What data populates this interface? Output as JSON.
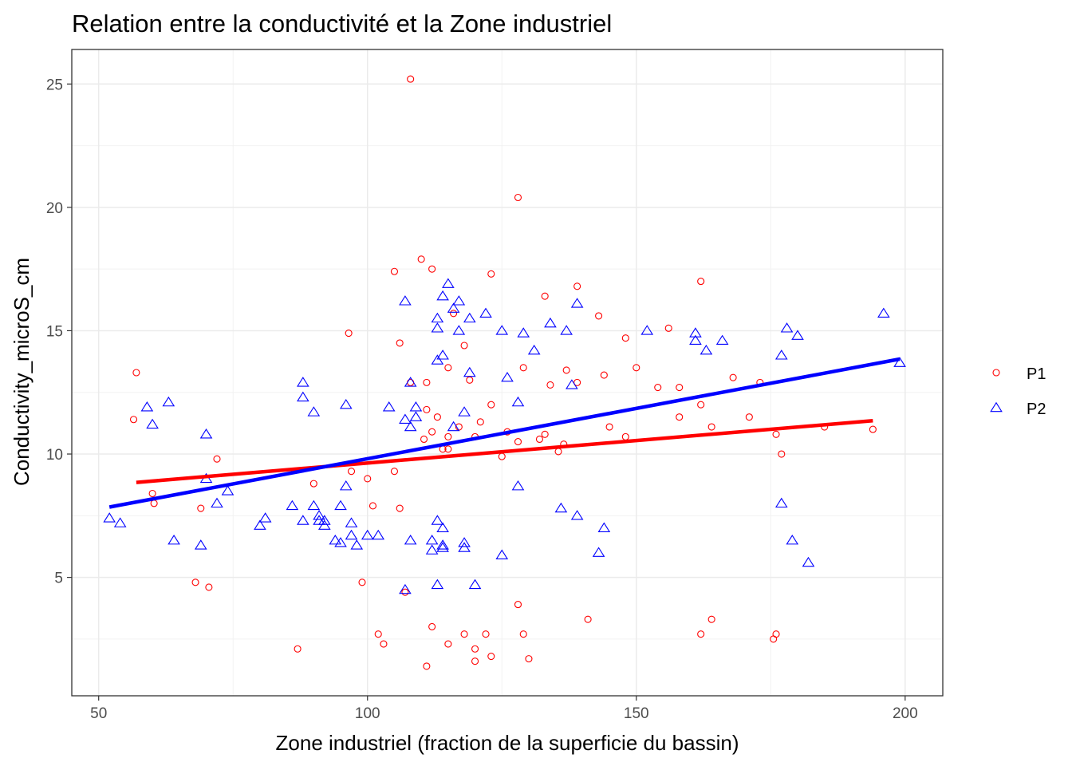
{
  "chart_data": {
    "type": "scatter",
    "title": "Relation entre la conductivité et la Zone industriel",
    "xlabel": "Zone industriel (fraction de la superficie du bassin)",
    "ylabel": "Conductivity_microS_cm",
    "xlim": [
      45,
      207
    ],
    "ylim": [
      0.2,
      26.4
    ],
    "x_ticks": [
      50,
      100,
      150,
      200
    ],
    "y_ticks": [
      5,
      10,
      15,
      20,
      25
    ],
    "grid": true,
    "legend_position": "right",
    "series": [
      {
        "name": "P1",
        "color": "#ff0000",
        "marker": "circle",
        "points": [
          [
            57,
            13.3
          ],
          [
            56.5,
            11.4
          ],
          [
            60,
            8.4
          ],
          [
            60.3,
            8.0
          ],
          [
            68,
            4.8
          ],
          [
            69,
            7.8
          ],
          [
            70.5,
            4.6
          ],
          [
            72,
            9.8
          ],
          [
            87,
            2.1
          ],
          [
            90,
            8.8
          ],
          [
            96.5,
            14.9
          ],
          [
            97,
            9.3
          ],
          [
            99,
            4.8
          ],
          [
            100,
            9.0
          ],
          [
            101,
            7.9
          ],
          [
            102,
            2.7
          ],
          [
            103,
            2.3
          ],
          [
            105,
            9.3
          ],
          [
            105,
            17.4
          ],
          [
            106,
            14.5
          ],
          [
            106,
            7.8
          ],
          [
            107,
            4.4
          ],
          [
            108,
            25.2
          ],
          [
            108,
            12.9
          ],
          [
            110,
            17.9
          ],
          [
            110.5,
            10.6
          ],
          [
            111,
            11.8
          ],
          [
            111,
            12.9
          ],
          [
            111,
            1.4
          ],
          [
            112,
            17.5
          ],
          [
            112,
            10.9
          ],
          [
            112,
            3.0
          ],
          [
            113,
            11.5
          ],
          [
            114,
            10.2
          ],
          [
            115,
            13.5
          ],
          [
            115,
            10.7
          ],
          [
            115,
            10.2
          ],
          [
            115,
            2.3
          ],
          [
            116,
            15.7
          ],
          [
            117,
            11.1
          ],
          [
            118,
            2.7
          ],
          [
            118,
            14.4
          ],
          [
            119,
            13.0
          ],
          [
            120,
            10.7
          ],
          [
            120,
            2.1
          ],
          [
            120,
            1.6
          ],
          [
            121,
            11.3
          ],
          [
            122,
            2.7
          ],
          [
            123,
            17.3
          ],
          [
            123,
            1.8
          ],
          [
            123,
            12.0
          ],
          [
            125,
            9.9
          ],
          [
            126,
            10.9
          ],
          [
            128,
            20.4
          ],
          [
            128,
            10.5
          ],
          [
            128,
            3.9
          ],
          [
            129,
            13.5
          ],
          [
            129,
            2.7
          ],
          [
            130,
            1.7
          ],
          [
            132,
            10.6
          ],
          [
            133,
            10.8
          ],
          [
            133,
            16.4
          ],
          [
            134,
            12.8
          ],
          [
            135.5,
            10.1
          ],
          [
            136.5,
            10.4
          ],
          [
            137,
            13.4
          ],
          [
            139,
            12.9
          ],
          [
            139,
            16.8
          ],
          [
            141,
            3.3
          ],
          [
            143,
            15.6
          ],
          [
            144,
            13.2
          ],
          [
            145,
            11.1
          ],
          [
            148,
            14.7
          ],
          [
            148,
            10.7
          ],
          [
            150,
            13.5
          ],
          [
            154,
            12.7
          ],
          [
            156,
            15.1
          ],
          [
            158,
            12.7
          ],
          [
            158,
            11.5
          ],
          [
            162,
            17.0
          ],
          [
            162,
            12.0
          ],
          [
            162,
            2.7
          ],
          [
            164,
            11.1
          ],
          [
            164,
            3.3
          ],
          [
            168,
            13.1
          ],
          [
            171,
            11.5
          ],
          [
            173,
            12.9
          ],
          [
            175.5,
            2.5
          ],
          [
            176,
            10.8
          ],
          [
            176,
            2.7
          ],
          [
            177,
            10.0
          ],
          [
            185,
            11.1
          ],
          [
            194,
            11.0
          ]
        ],
        "trend": [
          [
            57,
            8.85
          ],
          [
            194,
            11.35
          ]
        ]
      },
      {
        "name": "P2",
        "color": "#0000ff",
        "marker": "triangle",
        "points": [
          [
            52,
            7.4
          ],
          [
            54,
            7.2
          ],
          [
            59,
            11.9
          ],
          [
            60,
            11.2
          ],
          [
            63,
            12.1
          ],
          [
            64,
            6.5
          ],
          [
            69,
            6.3
          ],
          [
            70,
            9.0
          ],
          [
            70,
            10.8
          ],
          [
            72,
            8.0
          ],
          [
            74,
            8.5
          ],
          [
            80,
            7.1
          ],
          [
            81,
            7.4
          ],
          [
            86,
            7.9
          ],
          [
            88,
            12.9
          ],
          [
            88,
            12.3
          ],
          [
            88,
            7.3
          ],
          [
            90,
            11.7
          ],
          [
            90,
            7.9
          ],
          [
            91,
            7.5
          ],
          [
            91,
            7.3
          ],
          [
            92,
            7.3
          ],
          [
            92,
            7.1
          ],
          [
            94,
            6.5
          ],
          [
            95,
            6.4
          ],
          [
            95,
            7.9
          ],
          [
            96,
            12.0
          ],
          [
            96,
            8.7
          ],
          [
            97,
            7.2
          ],
          [
            97,
            6.7
          ],
          [
            98,
            6.3
          ],
          [
            100,
            6.7
          ],
          [
            102,
            6.7
          ],
          [
            104,
            11.9
          ],
          [
            107,
            16.2
          ],
          [
            107,
            11.4
          ],
          [
            107,
            4.5
          ],
          [
            108,
            12.9
          ],
          [
            108,
            11.1
          ],
          [
            108,
            6.5
          ],
          [
            109,
            11.5
          ],
          [
            109,
            11.9
          ],
          [
            112,
            6.5
          ],
          [
            112,
            6.1
          ],
          [
            113,
            15.5
          ],
          [
            113,
            15.1
          ],
          [
            113,
            13.8
          ],
          [
            113,
            7.3
          ],
          [
            113,
            4.7
          ],
          [
            114,
            16.4
          ],
          [
            114,
            14.0
          ],
          [
            114,
            7.0
          ],
          [
            114,
            6.3
          ],
          [
            114,
            6.2
          ],
          [
            115,
            16.9
          ],
          [
            116,
            15.9
          ],
          [
            116,
            11.1
          ],
          [
            117,
            16.2
          ],
          [
            117,
            15.0
          ],
          [
            118,
            11.7
          ],
          [
            118,
            6.4
          ],
          [
            118,
            6.2
          ],
          [
            119,
            15.5
          ],
          [
            119,
            13.3
          ],
          [
            120,
            4.7
          ],
          [
            122,
            15.7
          ],
          [
            125,
            15.0
          ],
          [
            125,
            5.9
          ],
          [
            126,
            13.1
          ],
          [
            128,
            12.1
          ],
          [
            128,
            8.7
          ],
          [
            129,
            14.9
          ],
          [
            131,
            14.2
          ],
          [
            134,
            15.3
          ],
          [
            136,
            7.8
          ],
          [
            137,
            15.0
          ],
          [
            138,
            12.8
          ],
          [
            139,
            16.1
          ],
          [
            139,
            7.5
          ],
          [
            143,
            6.0
          ],
          [
            144,
            7.0
          ],
          [
            152,
            15.0
          ],
          [
            161,
            14.9
          ],
          [
            161,
            14.6
          ],
          [
            163,
            14.2
          ],
          [
            166,
            14.6
          ],
          [
            177,
            14.0
          ],
          [
            177,
            8.0
          ],
          [
            178,
            15.1
          ],
          [
            179,
            6.5
          ],
          [
            180,
            14.8
          ],
          [
            182,
            5.6
          ],
          [
            196,
            15.7
          ],
          [
            199,
            13.7
          ]
        ],
        "trend": [
          [
            52,
            7.85
          ],
          [
            199,
            13.85
          ]
        ]
      }
    ]
  }
}
